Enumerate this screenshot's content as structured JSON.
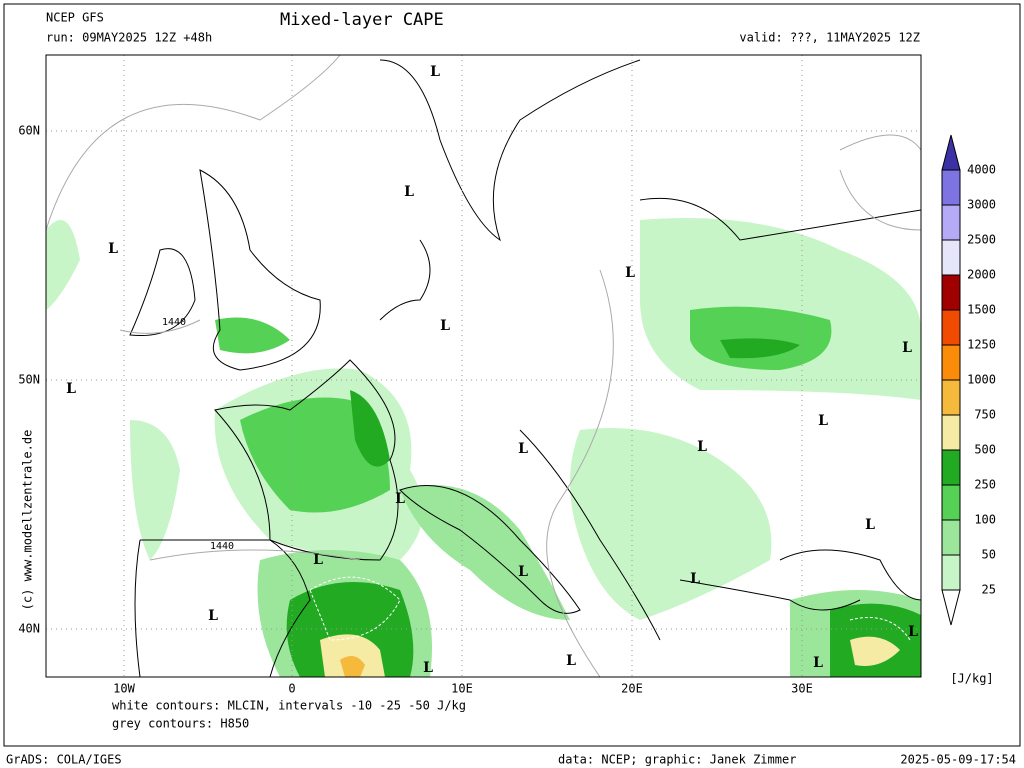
{
  "header": {
    "model": "NCEP GFS",
    "run": "run: 09MAY2025 12Z +48h",
    "title": "Mixed-layer CAPE",
    "valid": "valid: ???, 11MAY2025 12Z"
  },
  "axes": {
    "lat": [
      "60N",
      "50N",
      "40N"
    ],
    "lon": [
      "10W",
      "0",
      "10E",
      "20E",
      "30E"
    ]
  },
  "map": {
    "lows": [
      "L",
      "L",
      "L",
      "L",
      "L",
      "L",
      "L",
      "L",
      "L",
      "L",
      "L",
      "L",
      "L",
      "L",
      "L",
      "L",
      "L",
      "L",
      "L",
      "L"
    ],
    "contour_labels": [
      "1440",
      "1440"
    ]
  },
  "colorbar": {
    "unit": "[J/kg]",
    "ticks": [
      "25",
      "50",
      "100",
      "250",
      "500",
      "750",
      "1000",
      "1250",
      "1500",
      "2000",
      "2500",
      "3000",
      "4000"
    ],
    "colors": [
      "#ffffff",
      "#c8f5c8",
      "#9be69b",
      "#55d255",
      "#23aa23",
      "#f5eba5",
      "#f5b93c",
      "#fa8c0a",
      "#f04b00",
      "#a00000",
      "#e6e6fa",
      "#b4aaf5",
      "#7d73e1",
      "#3c32a5"
    ]
  },
  "footer": {
    "mlcin": "white contours: MLCIN, intervals -10 -25 -50 J/kg",
    "h850": "grey contours: H850",
    "credit": "(c) www.modellzentrale.de",
    "grads": "GrADS: COLA/IGES",
    "source": "data: NCEP; graphic: Janek Zimmer",
    "timestamp": "2025-05-09-17:54"
  }
}
